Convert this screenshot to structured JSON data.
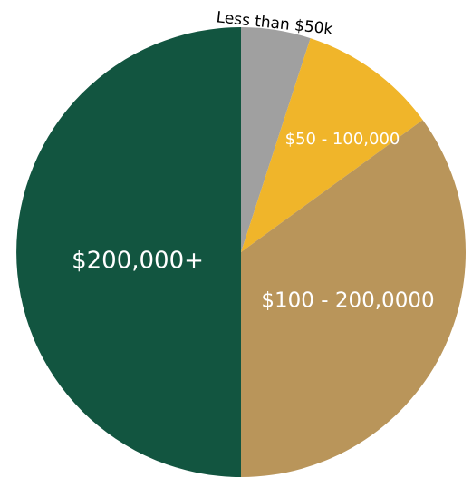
{
  "chart_data": {
    "type": "pie",
    "slices": [
      {
        "label": "Less than $50k",
        "value": 5,
        "color": "#A0A0A0",
        "label_color": "#000000"
      },
      {
        "label": "$50 - 100,000",
        "value": 10,
        "color": "#F0B52A",
        "label_color": "#FFFFFF"
      },
      {
        "label": "$100 - 200,0000",
        "value": 35,
        "color": "#B9955A",
        "label_color": "#FFFFFF"
      },
      {
        "label": "$200,000+",
        "value": 50,
        "color": "#125540",
        "label_color": "#FFFFFF"
      }
    ],
    "start_angle_deg": 0,
    "direction": "clockwise"
  }
}
